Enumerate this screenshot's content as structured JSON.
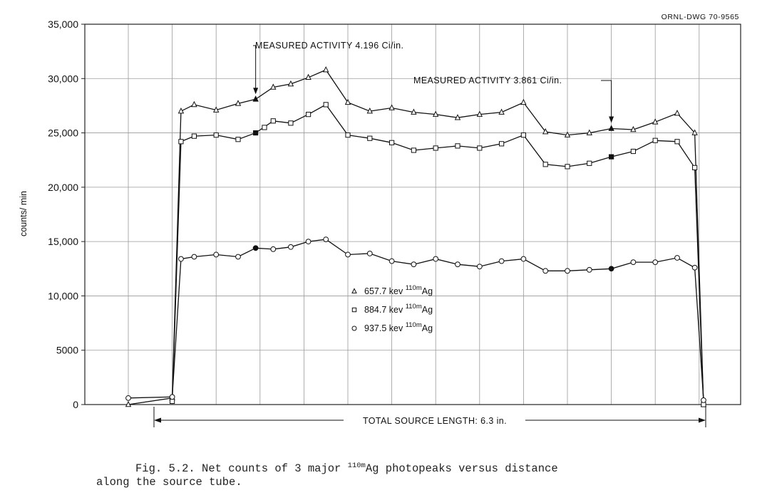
{
  "drawing_number": "ORNL-DWG 70-9565",
  "chart_data": {
    "type": "line",
    "ylabel": "counts/ min",
    "ylim": [
      0,
      35000
    ],
    "y_ticks": [
      0,
      5000,
      10000,
      15000,
      20000,
      25000,
      30000,
      35000
    ],
    "y_tick_labels": [
      "0",
      "5000",
      "10,000",
      "15,000",
      "20,000",
      "25,000",
      "30,000",
      "35,000"
    ],
    "grid": true,
    "legend_position": "center",
    "series": [
      {
        "name": "657.7 kev",
        "marker": "triangle",
        "points": [
          {
            "x": 0,
            "y": 0
          },
          {
            "x": 1,
            "y": 600
          },
          {
            "x": 1.2,
            "y": 27000
          },
          {
            "x": 1.5,
            "y": 27600
          },
          {
            "x": 2,
            "y": 27100
          },
          {
            "x": 2.5,
            "y": 27700
          },
          {
            "x": 2.9,
            "y": 28100
          },
          {
            "x": 3.3,
            "y": 29200
          },
          {
            "x": 3.7,
            "y": 29500
          },
          {
            "x": 4.1,
            "y": 30100
          },
          {
            "x": 4.5,
            "y": 30800
          },
          {
            "x": 5.0,
            "y": 27800
          },
          {
            "x": 5.5,
            "y": 27000
          },
          {
            "x": 6.0,
            "y": 27300
          },
          {
            "x": 6.5,
            "y": 26900
          },
          {
            "x": 7.0,
            "y": 26700
          },
          {
            "x": 7.5,
            "y": 26400
          },
          {
            "x": 8.0,
            "y": 26700
          },
          {
            "x": 8.5,
            "y": 26900
          },
          {
            "x": 9.0,
            "y": 27800
          },
          {
            "x": 9.5,
            "y": 25100
          },
          {
            "x": 10.0,
            "y": 24800
          },
          {
            "x": 10.5,
            "y": 25000
          },
          {
            "x": 11.0,
            "y": 25400
          },
          {
            "x": 11.5,
            "y": 25300
          },
          {
            "x": 12.0,
            "y": 26000
          },
          {
            "x": 12.5,
            "y": 26800
          },
          {
            "x": 12.9,
            "y": 25000
          },
          {
            "x": 13.1,
            "y": 0
          }
        ],
        "filled_x": [
          2.9,
          11.0
        ]
      },
      {
        "name": "884.7 kev",
        "marker": "square",
        "points": [
          {
            "x": 1,
            "y": 300
          },
          {
            "x": 1.2,
            "y": 24200
          },
          {
            "x": 1.5,
            "y": 24700
          },
          {
            "x": 2,
            "y": 24800
          },
          {
            "x": 2.5,
            "y": 24400
          },
          {
            "x": 2.9,
            "y": 25000
          },
          {
            "x": 3.3,
            "y": 26100
          },
          {
            "x": 3.7,
            "y": 25900
          },
          {
            "x": 4.1,
            "y": 26700
          },
          {
            "x": 4.5,
            "y": 27600
          },
          {
            "x": 5.0,
            "y": 24800
          },
          {
            "x": 5.5,
            "y": 24500
          },
          {
            "x": 6.0,
            "y": 24100
          },
          {
            "x": 6.5,
            "y": 23400
          },
          {
            "x": 7.0,
            "y": 23600
          },
          {
            "x": 7.5,
            "y": 23800
          },
          {
            "x": 8.0,
            "y": 23600
          },
          {
            "x": 8.5,
            "y": 24000
          },
          {
            "x": 9.0,
            "y": 24800
          },
          {
            "x": 9.5,
            "y": 22100
          },
          {
            "x": 10.0,
            "y": 21900
          },
          {
            "x": 10.5,
            "y": 22200
          },
          {
            "x": 11.0,
            "y": 22800
          },
          {
            "x": 11.5,
            "y": 23300
          },
          {
            "x": 12.0,
            "y": 24300
          },
          {
            "x": 12.5,
            "y": 24200
          },
          {
            "x": 12.9,
            "y": 21800
          },
          {
            "x": 13.1,
            "y": 0
          }
        ],
        "extra_points": [
          {
            "x": 3.1,
            "y": 25500
          }
        ],
        "filled_x": [
          2.9,
          11.0
        ]
      },
      {
        "name": "937.5 kev",
        "marker": "circle",
        "points": [
          {
            "x": 0,
            "y": 600
          },
          {
            "x": 1,
            "y": 700
          },
          {
            "x": 1.2,
            "y": 13400
          },
          {
            "x": 1.5,
            "y": 13600
          },
          {
            "x": 2,
            "y": 13800
          },
          {
            "x": 2.5,
            "y": 13600
          },
          {
            "x": 2.9,
            "y": 14400
          },
          {
            "x": 3.3,
            "y": 14300
          },
          {
            "x": 3.7,
            "y": 14500
          },
          {
            "x": 4.1,
            "y": 15000
          },
          {
            "x": 4.5,
            "y": 15200
          },
          {
            "x": 5.0,
            "y": 13800
          },
          {
            "x": 5.5,
            "y": 13900
          },
          {
            "x": 6.0,
            "y": 13200
          },
          {
            "x": 6.5,
            "y": 12900
          },
          {
            "x": 7.0,
            "y": 13400
          },
          {
            "x": 7.5,
            "y": 12900
          },
          {
            "x": 8.0,
            "y": 12700
          },
          {
            "x": 8.5,
            "y": 13200
          },
          {
            "x": 9.0,
            "y": 13400
          },
          {
            "x": 9.5,
            "y": 12300
          },
          {
            "x": 10.0,
            "y": 12300
          },
          {
            "x": 10.5,
            "y": 12400
          },
          {
            "x": 11.0,
            "y": 12500
          },
          {
            "x": 11.5,
            "y": 13100
          },
          {
            "x": 12.0,
            "y": 13100
          },
          {
            "x": 12.5,
            "y": 13500
          },
          {
            "x": 12.9,
            "y": 12600
          },
          {
            "x": 13.1,
            "y": 400
          }
        ],
        "filled_x": [
          2.9,
          11.0
        ]
      }
    ],
    "legend": [
      {
        "marker": "triangle",
        "energy": "657.7 kev",
        "sup": "110m",
        "element": "Ag"
      },
      {
        "marker": "square",
        "energy": "884.7 kev",
        "sup": "110m",
        "element": "Ag"
      },
      {
        "marker": "circle",
        "energy": "937.5 kev",
        "sup": "110m",
        "element": "Ag"
      }
    ],
    "annotations": [
      {
        "text": "MEASURED ACTIVITY 4.196 Ci/in.",
        "x": 2.9,
        "y": 28100
      },
      {
        "text": "MEASURED ACTIVITY 3.861 Ci/in.",
        "x": 11.0,
        "y": 25400
      }
    ],
    "source_length_label": "TOTAL SOURCE LENGTH: 6.3 in."
  },
  "caption": {
    "prefix": "Fig. 5.2.  Net counts of 3 major ",
    "sup": "110m",
    "after_sup": "Ag photopeaks versus distance",
    "line2": "along the source tube."
  }
}
